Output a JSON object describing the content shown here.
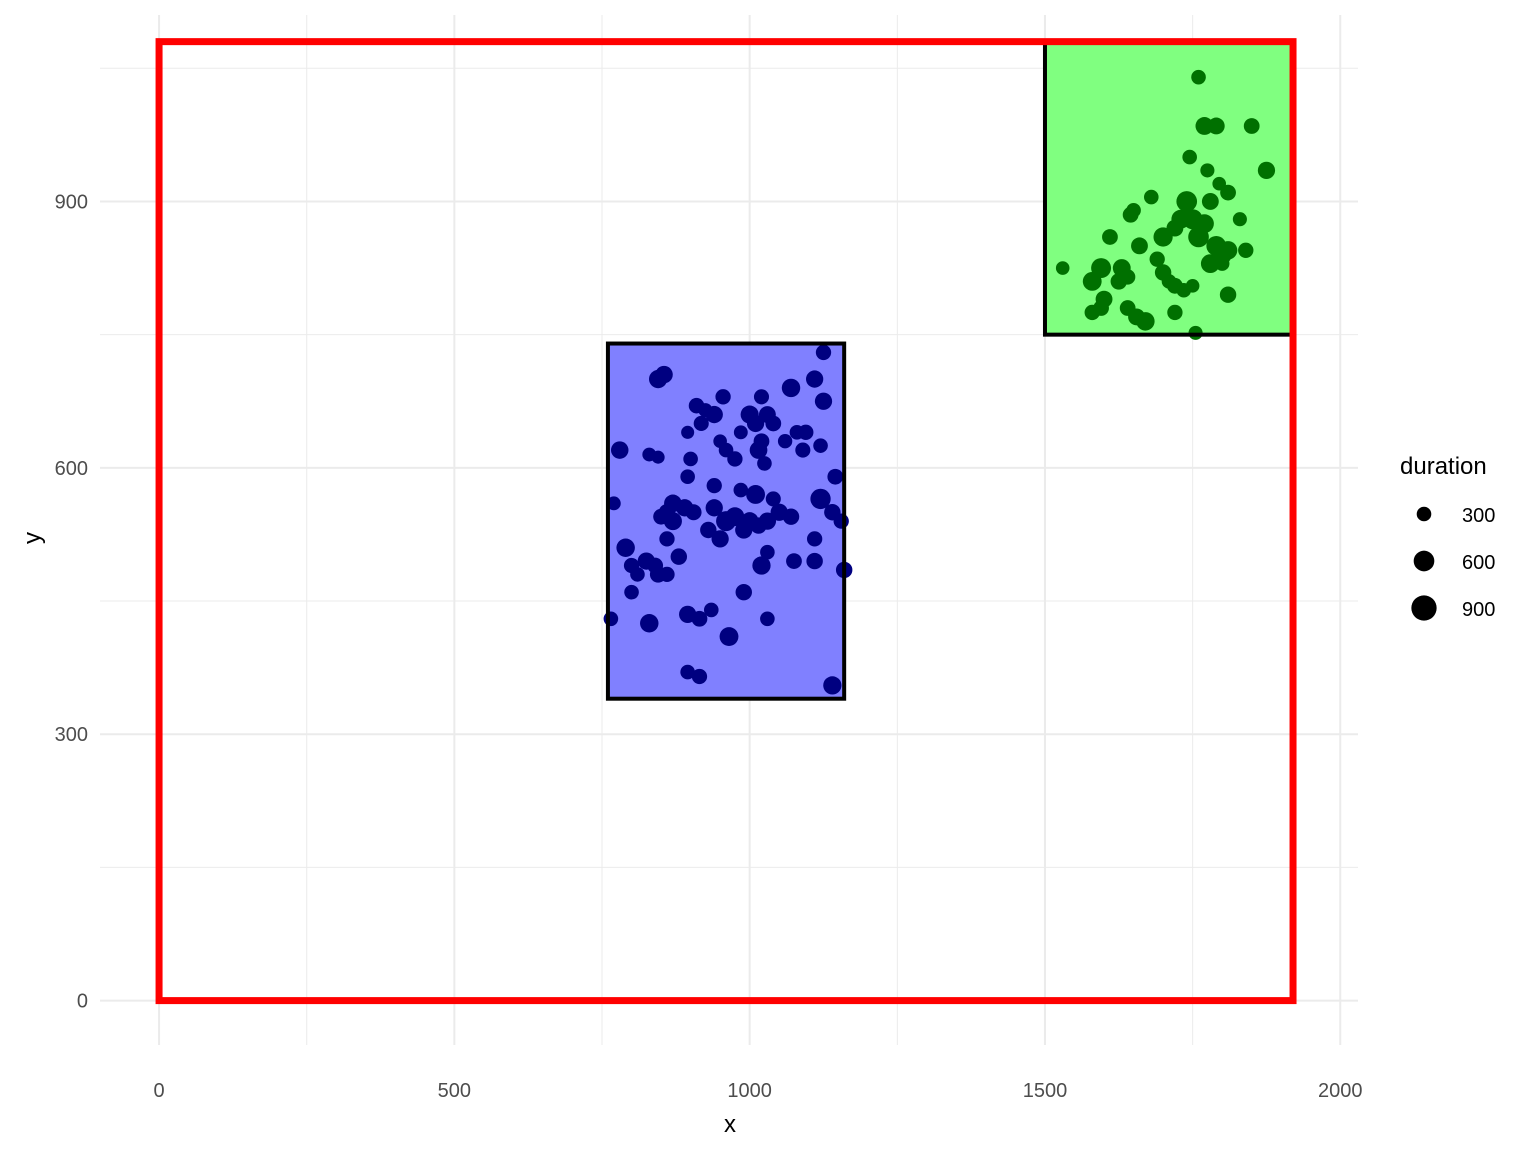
{
  "chart_data": {
    "type": "scatter",
    "xlabel": "x",
    "ylabel": "y",
    "xlim": [
      -100,
      2030
    ],
    "ylim": [
      -50,
      1110
    ],
    "x_ticks": [
      0,
      500,
      1000,
      1500,
      2000
    ],
    "y_ticks": [
      0,
      300,
      600,
      900
    ],
    "x_minor_grid": [
      250,
      750,
      1250,
      1750
    ],
    "y_minor_grid": [
      150,
      450,
      750,
      1050
    ],
    "grid": true,
    "colors": {
      "outer_border": "#ff0000",
      "region_outline": "#000000",
      "blue_fill": "#8080ff",
      "blue_points": "#000080",
      "green_fill": "#80ff80",
      "green_points": "#007000",
      "grid": "#ebebeb"
    },
    "outer_rect": {
      "x0": 0,
      "x1": 1920,
      "y0": 0,
      "y1": 1080
    },
    "regions": [
      {
        "name": "blue",
        "rect": {
          "x0": 760,
          "x1": 1160,
          "y0": 340,
          "y1": 740
        },
        "fill": "#8080ff",
        "point_color": "#000080",
        "points": [
          [
            780,
            620,
            430
          ],
          [
            790,
            510,
            480
          ],
          [
            845,
            700,
            470
          ],
          [
            855,
            705,
            430
          ],
          [
            895,
            640,
            240
          ],
          [
            900,
            610,
            300
          ],
          [
            910,
            670,
            340
          ],
          [
            918,
            650,
            320
          ],
          [
            925,
            665,
            280
          ],
          [
            940,
            660,
            420
          ],
          [
            950,
            630,
            260
          ],
          [
            955,
            680,
            330
          ],
          [
            960,
            620,
            300
          ],
          [
            975,
            610,
            330
          ],
          [
            985,
            640,
            270
          ],
          [
            1000,
            660,
            460
          ],
          [
            1010,
            650,
            420
          ],
          [
            1020,
            680,
            320
          ],
          [
            1030,
            660,
            400
          ],
          [
            1040,
            650,
            350
          ],
          [
            1060,
            630,
            290
          ],
          [
            1070,
            690,
            480
          ],
          [
            1080,
            640,
            300
          ],
          [
            1095,
            640,
            330
          ],
          [
            1110,
            700,
            420
          ],
          [
            1125,
            730,
            330
          ],
          [
            1125,
            675,
            420
          ],
          [
            1120,
            625,
            300
          ],
          [
            1090,
            620,
            320
          ],
          [
            1015,
            620,
            440
          ],
          [
            1025,
            605,
            300
          ],
          [
            1020,
            630,
            350
          ],
          [
            830,
            615,
            270
          ],
          [
            845,
            612,
            240
          ],
          [
            895,
            590,
            300
          ],
          [
            940,
            580,
            330
          ],
          [
            985,
            575,
            300
          ],
          [
            1010,
            570,
            500
          ],
          [
            1040,
            565,
            320
          ],
          [
            1120,
            565,
            580
          ],
          [
            1145,
            590,
            350
          ],
          [
            1140,
            550,
            380
          ],
          [
            1155,
            540,
            330
          ],
          [
            1110,
            520,
            330
          ],
          [
            1070,
            545,
            380
          ],
          [
            1050,
            550,
            420
          ],
          [
            1030,
            540,
            420
          ],
          [
            1015,
            535,
            380
          ],
          [
            1000,
            540,
            450
          ],
          [
            990,
            530,
            420
          ],
          [
            975,
            545,
            500
          ],
          [
            960,
            540,
            560
          ],
          [
            950,
            520,
            420
          ],
          [
            940,
            555,
            420
          ],
          [
            930,
            530,
            380
          ],
          [
            905,
            550,
            360
          ],
          [
            890,
            555,
            420
          ],
          [
            870,
            560,
            440
          ],
          [
            860,
            550,
            380
          ],
          [
            850,
            545,
            350
          ],
          [
            870,
            540,
            460
          ],
          [
            860,
            520,
            330
          ],
          [
            880,
            500,
            380
          ],
          [
            825,
            495,
            420
          ],
          [
            840,
            490,
            350
          ],
          [
            800,
            490,
            330
          ],
          [
            810,
            480,
            300
          ],
          [
            845,
            480,
            380
          ],
          [
            860,
            480,
            330
          ],
          [
            800,
            460,
            300
          ],
          [
            770,
            560,
            270
          ],
          [
            765,
            430,
            300
          ],
          [
            830,
            425,
            480
          ],
          [
            895,
            435,
            420
          ],
          [
            915,
            430,
            350
          ],
          [
            935,
            440,
            300
          ],
          [
            965,
            410,
            500
          ],
          [
            1030,
            430,
            300
          ],
          [
            990,
            460,
            380
          ],
          [
            1020,
            490,
            470
          ],
          [
            1075,
            495,
            350
          ],
          [
            1110,
            495,
            380
          ],
          [
            1160,
            485,
            380
          ],
          [
            895,
            370,
            300
          ],
          [
            915,
            365,
            330
          ],
          [
            1140,
            355,
            470
          ],
          [
            1030,
            505,
            300
          ]
        ]
      },
      {
        "name": "green",
        "rect": {
          "x0": 1500,
          "x1": 1920,
          "y0": 750,
          "y1": 1080
        },
        "fill": "#80ff80",
        "point_color": "#007000",
        "points": [
          [
            1760,
            1040,
            300
          ],
          [
            1770,
            985,
            450
          ],
          [
            1790,
            985,
            400
          ],
          [
            1850,
            985,
            350
          ],
          [
            1875,
            935,
            420
          ],
          [
            1745,
            950,
            300
          ],
          [
            1775,
            935,
            280
          ],
          [
            1795,
            920,
            260
          ],
          [
            1810,
            910,
            350
          ],
          [
            1680,
            905,
            300
          ],
          [
            1740,
            900,
            600
          ],
          [
            1780,
            900,
            400
          ],
          [
            1730,
            880,
            500
          ],
          [
            1750,
            880,
            560
          ],
          [
            1770,
            875,
            500
          ],
          [
            1720,
            870,
            400
          ],
          [
            1700,
            860,
            520
          ],
          [
            1760,
            860,
            600
          ],
          [
            1790,
            850,
            550
          ],
          [
            1810,
            845,
            480
          ],
          [
            1800,
            840,
            520
          ],
          [
            1780,
            830,
            500
          ],
          [
            1830,
            880,
            280
          ],
          [
            1840,
            845,
            330
          ],
          [
            1645,
            885,
            350
          ],
          [
            1650,
            890,
            300
          ],
          [
            1610,
            860,
            350
          ],
          [
            1660,
            850,
            400
          ],
          [
            1690,
            835,
            330
          ],
          [
            1595,
            825,
            560
          ],
          [
            1630,
            825,
            450
          ],
          [
            1625,
            810,
            380
          ],
          [
            1580,
            810,
            500
          ],
          [
            1530,
            825,
            260
          ],
          [
            1600,
            790,
            400
          ],
          [
            1640,
            815,
            330
          ],
          [
            1700,
            820,
            380
          ],
          [
            1710,
            810,
            300
          ],
          [
            1720,
            805,
            350
          ],
          [
            1735,
            800,
            300
          ],
          [
            1750,
            805,
            260
          ],
          [
            1810,
            795,
            380
          ],
          [
            1580,
            775,
            330
          ],
          [
            1595,
            780,
            350
          ],
          [
            1640,
            780,
            350
          ],
          [
            1655,
            770,
            400
          ],
          [
            1670,
            765,
            480
          ],
          [
            1720,
            775,
            330
          ],
          [
            1755,
            752,
            280
          ],
          [
            1800,
            830,
            300
          ]
        ]
      }
    ],
    "legend": {
      "title": "duration",
      "placement": "right",
      "entries": [
        {
          "label": "300",
          "value": 300
        },
        {
          "label": "600",
          "value": 600
        },
        {
          "label": "900",
          "value": 900
        }
      ]
    }
  }
}
